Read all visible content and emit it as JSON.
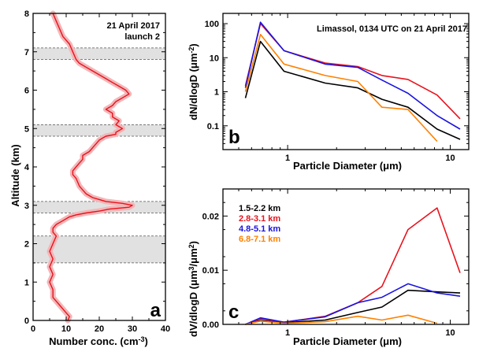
{
  "chart_data": [
    {
      "panel": "a",
      "type": "line",
      "xlabel": "Number conc. (cm",
      "xlabel_sup": "-3",
      "xlabel_end": ")",
      "ylabel": "Altitude (km)",
      "xlim": [
        0,
        40
      ],
      "ylim": [
        0,
        8
      ],
      "xticks": [
        "0",
        "10",
        "20",
        "30",
        "40"
      ],
      "yticks": [
        "0",
        "1",
        "2",
        "3",
        "4",
        "5",
        "6",
        "7",
        "8"
      ],
      "annotation_lines": [
        "21 April 2017",
        "launch 2"
      ],
      "panel_letter": "a",
      "line_color": "#e8121c",
      "band_color": "#f2b6b8",
      "layers_km": [
        [
          1.5,
          2.2
        ],
        [
          2.8,
          3.1
        ],
        [
          4.8,
          5.1
        ],
        [
          6.8,
          7.1
        ]
      ],
      "series": [
        {
          "x": [
            10.5,
            11,
            10,
            9,
            8,
            7,
            6,
            6,
            5,
            6,
            5,
            6,
            5,
            6,
            7,
            6,
            6,
            7,
            8,
            9,
            10,
            11,
            13,
            16,
            20,
            23,
            29,
            30,
            27,
            22,
            18,
            16,
            14,
            13,
            12,
            12,
            13,
            14,
            15,
            15,
            17,
            18,
            19,
            20,
            21,
            22,
            25,
            25,
            27,
            25,
            26,
            24,
            24,
            22,
            24,
            25,
            27,
            29,
            28,
            26,
            24,
            22,
            20,
            18,
            16,
            14,
            13,
            12,
            11,
            9,
            8,
            7,
            6
          ],
          "y": [
            0,
            0.1,
            0.2,
            0.3,
            0.4,
            0.5,
            0.6,
            0.8,
            1.0,
            1.2,
            1.4,
            1.6,
            1.8,
            2.0,
            2.2,
            2.3,
            2.4,
            2.5,
            2.55,
            2.6,
            2.65,
            2.7,
            2.75,
            2.8,
            2.85,
            2.9,
            2.95,
            3.0,
            3.05,
            3.1,
            3.2,
            3.3,
            3.5,
            3.7,
            3.8,
            3.9,
            4.0,
            4.1,
            4.2,
            4.3,
            4.4,
            4.5,
            4.6,
            4.7,
            4.75,
            4.8,
            4.85,
            4.9,
            5.0,
            5.1,
            5.2,
            5.3,
            5.4,
            5.5,
            5.6,
            5.7,
            5.8,
            5.9,
            6.0,
            6.1,
            6.2,
            6.3,
            6.4,
            6.5,
            6.6,
            6.7,
            6.8,
            7.0,
            7.2,
            7.4,
            7.6,
            7.8,
            8.0
          ]
        }
      ]
    },
    {
      "panel": "b",
      "type": "line",
      "title": "Limassol, 0134 UTC on 21 April 2017",
      "xlabel": "Particle Diameter (μm)",
      "ylabel": "dN/dlogD (μm",
      "ylabel_sup": "-2",
      "ylabel_end": ")",
      "x_scale": "log",
      "y_scale": "log",
      "xlim": [
        0.4,
        13
      ],
      "ylim": [
        0.02,
        200
      ],
      "xticks": [
        "1",
        "10"
      ],
      "yticks": [
        "0.1",
        "1",
        "10",
        "100"
      ],
      "panel_letter": "b",
      "x": [
        0.55,
        0.68,
        0.95,
        1.7,
        2.7,
        3.8,
        5.5,
        8.3,
        11.5
      ],
      "series": [
        {
          "color": "#000000",
          "values": [
            0.65,
            30,
            4,
            1.8,
            1.3,
            0.6,
            0.35,
            0.08,
            0.04
          ]
        },
        {
          "color": "#e8121c",
          "values": [
            1.5,
            100,
            16,
            7,
            5.5,
            3,
            2.3,
            0.8,
            0.16
          ]
        },
        {
          "color": "#1a13e0",
          "values": [
            1.3,
            110,
            16,
            6.5,
            5.2,
            2.2,
            0.9,
            0.2,
            0.08
          ]
        },
        {
          "color": "#ff8000",
          "values": [
            1.0,
            48,
            6.5,
            3,
            2,
            0.35,
            0.3,
            0.035,
            null
          ]
        }
      ]
    },
    {
      "panel": "c",
      "type": "line",
      "xlabel": "Particle Diameter (μm)",
      "ylabel": "dV/dlogD (μm",
      "ylabel_sup": "3",
      "ylabel_mid": "/μm",
      "ylabel_sup2": "2",
      "ylabel_end": ")",
      "x_scale": "log",
      "xlim": [
        0.4,
        13
      ],
      "ylim": [
        0,
        0.025
      ],
      "xticks": [
        "1",
        "10"
      ],
      "yticks": [
        "0.00",
        "0.01",
        "0.02"
      ],
      "panel_letter": "c",
      "x": [
        0.55,
        0.68,
        0.95,
        1.7,
        2.7,
        3.8,
        5.5,
        8.3,
        11.5
      ],
      "series": [
        {
          "name": "1.5-2.2 km",
          "color": "#000000",
          "values": [
            0.0,
            0.0007,
            0.0003,
            0.0008,
            0.0022,
            0.0032,
            0.0063,
            0.006,
            0.0058
          ]
        },
        {
          "name": "2.8-3.1 km",
          "color": "#e8121c",
          "values": [
            0.0,
            0.001,
            0.0004,
            0.0015,
            0.004,
            0.007,
            0.0175,
            0.0215,
            0.0095
          ]
        },
        {
          "name": "4.8-5.1 km",
          "color": "#1a13e0",
          "values": [
            0.0,
            0.0012,
            0.0004,
            0.0014,
            0.004,
            0.005,
            0.0075,
            0.0058,
            0.0052
          ]
        },
        {
          "name": "6.8-7.1 km",
          "color": "#ff8000",
          "values": [
            0.0,
            0.0006,
            0.0002,
            0.0005,
            0.0015,
            0.0008,
            0.0017,
            0.0002,
            null
          ]
        }
      ]
    }
  ]
}
